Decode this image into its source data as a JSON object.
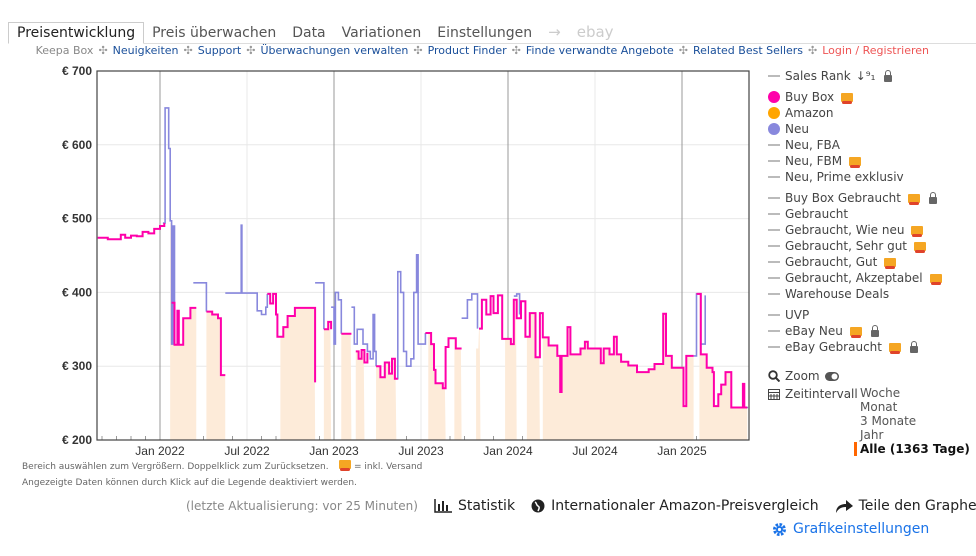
{
  "tabs": [
    "Preisentwicklung",
    "Preis überwachen",
    "Data",
    "Variationen",
    "Einstellungen",
    "→",
    "ebay"
  ],
  "subnav": [
    {
      "label": "Keepa Box",
      "style": "grey"
    },
    {
      "label": "Neuigkeiten",
      "style": "blue"
    },
    {
      "label": "Support",
      "style": "blue"
    },
    {
      "label": "Überwachungen verwalten",
      "style": "blue"
    },
    {
      "label": "Product Finder",
      "style": "blue"
    },
    {
      "label": "Finde verwandte Angebote",
      "style": "blue"
    },
    {
      "label": "Related Best Sellers",
      "style": "blue"
    },
    {
      "label": "Login / Registrieren",
      "style": "red"
    }
  ],
  "legend": {
    "groups": [
      [
        {
          "label": "Sales Rank",
          "marker": "dash",
          "sort": "↓⁹₁",
          "lock": true
        }
      ],
      [
        {
          "label": "Buy Box",
          "marker": "dot",
          "color": "#ff00aa",
          "truck": true
        },
        {
          "label": "Amazon",
          "marker": "dot",
          "color": "#ffa500"
        },
        {
          "label": "Neu",
          "marker": "dot",
          "color": "#8888dd"
        },
        {
          "label": "Neu, FBA",
          "marker": "dash"
        },
        {
          "label": "Neu, FBM",
          "marker": "dash",
          "truck": true
        },
        {
          "label": "Neu, Prime exklusiv",
          "marker": "dash"
        }
      ],
      [
        {
          "label": "Buy Box Gebraucht",
          "marker": "dash",
          "truck": true,
          "lock": true
        },
        {
          "label": "Gebraucht",
          "marker": "dash"
        },
        {
          "label": "Gebraucht, Wie neu",
          "marker": "dash",
          "truck": true
        },
        {
          "label": "Gebraucht, Sehr gut",
          "marker": "dash",
          "truck": true
        },
        {
          "label": "Gebraucht, Gut",
          "marker": "dash",
          "truck": true
        },
        {
          "label": "Gebraucht, Akzeptabel",
          "marker": "dash",
          "truck": true
        },
        {
          "label": "Warehouse Deals",
          "marker": "dash"
        }
      ],
      [
        {
          "label": "UVP",
          "marker": "dash"
        },
        {
          "label": "eBay Neu",
          "marker": "dash",
          "truck": true,
          "lock": true
        },
        {
          "label": "eBay Gebraucht",
          "marker": "dash",
          "truck": true,
          "lock": true
        }
      ]
    ]
  },
  "controls": {
    "zoom_label": "Zoom",
    "interval_label": "Zeitintervall",
    "ranges": [
      "Woche",
      "Monat",
      "3 Monate",
      "Jahr",
      "Alle (1363 Tage)"
    ],
    "selected_range": 4
  },
  "hint": {
    "line1": "Bereich auswählen zum Vergrößern. Doppelklick zum Zurücksetzen.",
    "versand": "= inkl. Versand",
    "line2": "Angezeigte Daten können durch Klick auf die Legende deaktiviert werden."
  },
  "bottom": {
    "updated": "(letzte Aktualisierung: vor 25 Minuten)",
    "stats": "Statistik",
    "intl": "Internationaler Amazon-Preisvergleich",
    "share": "Teile den Graphen",
    "settings": "Grafikeinstellungen"
  },
  "chart_data": {
    "type": "line",
    "title": "",
    "x_unit": "months since Jan 2022",
    "xlim": [
      -4.3,
      40.5
    ],
    "ylim": [
      200,
      700
    ],
    "yticks": [
      200,
      300,
      400,
      500,
      600,
      700
    ],
    "ytick_labels": [
      "€ 200",
      "€ 300",
      "€ 400",
      "€ 500",
      "€ 600",
      "€ 700"
    ],
    "xticks": [
      0,
      6,
      12,
      18,
      24,
      30,
      36
    ],
    "xtick_labels": [
      "Jan 2022",
      "Jul 2022",
      "Jan 2023",
      "Jul 2023",
      "Jan 2024",
      "Jul 2024",
      "Jan 2025"
    ],
    "grid": true,
    "series": [
      {
        "name": "Neu",
        "color": "#8888dd",
        "points": [
          [
            0.2,
            494
          ],
          [
            0.35,
            650
          ],
          [
            0.55,
            650
          ],
          [
            0.6,
            595
          ],
          [
            0.7,
            497
          ],
          [
            0.8,
            330
          ],
          [
            0.9,
            490
          ],
          [
            1.0,
            330
          ],
          null,
          [
            2.3,
            413
          ],
          [
            3.2,
            413
          ],
          [
            3.2,
            374
          ],
          null,
          [
            4.5,
            399
          ],
          [
            5.6,
            399
          ],
          [
            5.6,
            491
          ],
          [
            5.65,
            399
          ],
          [
            6.6,
            399
          ],
          [
            6.7,
            375
          ],
          [
            7.0,
            370
          ],
          [
            7.3,
            380
          ],
          [
            7.4,
            398
          ],
          null,
          [
            10.7,
            413
          ],
          [
            11.3,
            410
          ],
          [
            11.3,
            350
          ],
          null,
          [
            11.8,
            380
          ],
          [
            12.0,
            330
          ],
          [
            12.1,
            400
          ],
          [
            12.3,
            390
          ],
          [
            12.5,
            344
          ],
          null,
          [
            13.2,
            380
          ],
          [
            13.4,
            330
          ],
          [
            13.6,
            350
          ],
          [
            14.0,
            330
          ],
          [
            14.3,
            320
          ],
          [
            14.5,
            310
          ],
          [
            14.7,
            370
          ],
          [
            14.8,
            320
          ],
          [
            14.9,
            300
          ],
          null,
          [
            16.3,
            283
          ],
          [
            16.4,
            428
          ],
          [
            16.6,
            400
          ],
          [
            16.8,
            320
          ],
          [
            17.0,
            300
          ],
          [
            17.3,
            310
          ],
          [
            17.5,
            400
          ],
          [
            17.7,
            451
          ],
          [
            17.8,
            330
          ],
          [
            18.3,
            345
          ],
          null,
          [
            20.8,
            365
          ],
          [
            21.2,
            390
          ],
          [
            21.5,
            398
          ],
          [
            21.8,
            398
          ],
          [
            21.9,
            351
          ],
          null,
          [
            24.4,
            395
          ],
          [
            24.6,
            398
          ],
          [
            24.8,
            370
          ],
          null,
          [
            36.8,
            314
          ],
          [
            37.0,
            398
          ],
          [
            37.2,
            398
          ],
          [
            37.3,
            330
          ],
          [
            37.6,
            330
          ],
          [
            37.6,
            396
          ],
          null,
          [
            40.4,
            244
          ],
          [
            40.5,
            245
          ]
        ]
      },
      {
        "name": "Buy Box",
        "color": "#ff00aa",
        "points": [
          [
            -4.3,
            474
          ],
          [
            -3.6,
            472
          ],
          [
            -3.0,
            472
          ],
          [
            -2.7,
            478
          ],
          [
            -2.4,
            474
          ],
          [
            -2.0,
            477
          ],
          [
            -1.6,
            476
          ],
          [
            -1.2,
            482
          ],
          [
            -0.8,
            480
          ],
          [
            -0.4,
            486
          ],
          [
            0,
            490
          ],
          [
            0.3,
            494
          ],
          null,
          [
            0.8,
            386
          ],
          [
            1.0,
            329
          ],
          [
            1.2,
            375
          ],
          [
            1.3,
            329
          ],
          [
            1.6,
            365
          ],
          [
            2.1,
            379
          ],
          [
            2.5,
            379
          ],
          null,
          [
            3.2,
            374
          ],
          [
            3.6,
            370
          ],
          [
            4.0,
            365
          ],
          [
            4.2,
            288
          ],
          [
            4.5,
            288
          ],
          null,
          [
            7.4,
            398
          ],
          [
            7.6,
            385
          ],
          [
            7.8,
            398
          ],
          [
            8.0,
            370
          ],
          [
            8.1,
            340
          ],
          [
            8.5,
            353
          ],
          [
            8.8,
            368
          ],
          [
            9.3,
            379
          ],
          [
            10.7,
            278
          ],
          null,
          [
            11.3,
            350
          ],
          [
            11.6,
            360
          ],
          [
            11.8,
            350
          ],
          null,
          [
            12.5,
            344
          ],
          [
            13.2,
            344
          ],
          null,
          [
            13.5,
            320
          ],
          [
            13.7,
            310
          ],
          [
            13.9,
            322
          ],
          [
            14.1,
            305
          ],
          [
            14.3,
            318
          ],
          null,
          [
            14.9,
            300
          ],
          [
            15.2,
            285
          ],
          [
            15.5,
            305
          ],
          [
            15.8,
            290
          ],
          [
            16.0,
            310
          ],
          [
            16.2,
            283
          ],
          [
            16.4,
            283
          ],
          null,
          [
            18.3,
            345
          ],
          [
            18.7,
            330
          ],
          [
            18.9,
            295
          ],
          [
            19.0,
            277
          ],
          [
            19.5,
            270
          ],
          [
            19.7,
            326
          ],
          [
            19.9,
            338
          ],
          [
            20.4,
            324
          ],
          [
            20.8,
            324
          ],
          null,
          [
            22.0,
            351
          ],
          [
            22.2,
            390
          ],
          [
            22.5,
            370
          ],
          [
            22.8,
            395
          ],
          [
            23.0,
            372
          ],
          [
            23.3,
            396
          ],
          [
            23.6,
            337
          ],
          [
            24.0,
            337
          ],
          [
            24.2,
            330
          ],
          [
            24.4,
            390
          ],
          [
            24.6,
            365
          ],
          [
            24.9,
            388
          ],
          [
            25.2,
            340
          ],
          [
            25.5,
            372
          ],
          [
            25.9,
            312
          ],
          [
            26.2,
            372
          ],
          [
            26.4,
            339
          ],
          [
            26.8,
            328
          ],
          [
            27.4,
            314
          ],
          [
            27.6,
            265
          ],
          [
            27.7,
            314
          ],
          [
            28.1,
            353
          ],
          [
            28.3,
            316
          ],
          [
            29.0,
            324
          ],
          [
            29.3,
            333
          ],
          [
            29.5,
            324
          ],
          [
            30.4,
            304
          ],
          [
            30.6,
            324
          ],
          [
            31.0,
            316
          ],
          [
            31.3,
            340
          ],
          [
            31.5,
            316
          ],
          [
            31.8,
            306
          ],
          [
            32.3,
            301
          ],
          [
            32.9,
            292
          ],
          [
            33.7,
            296
          ],
          [
            34.1,
            303
          ],
          [
            34.7,
            371
          ],
          [
            34.9,
            314
          ],
          [
            35.3,
            298
          ],
          [
            36.0,
            298
          ],
          [
            36.1,
            246
          ],
          [
            36.3,
            314
          ],
          [
            36.8,
            314
          ],
          null,
          [
            37.0,
            398
          ],
          [
            37.3,
            316
          ],
          [
            37.7,
            298
          ],
          [
            38.1,
            292
          ],
          [
            38.2,
            246
          ],
          [
            38.5,
            262
          ],
          [
            38.7,
            275
          ],
          [
            39.0,
            292
          ],
          [
            39.4,
            244
          ],
          [
            40.1,
            244
          ],
          [
            40.2,
            276
          ],
          [
            40.3,
            244
          ],
          [
            40.5,
            244
          ]
        ]
      },
      {
        "name": "Amazon",
        "color": "#ffa500",
        "fill": "#fdebd9",
        "in_stock_ranges": [
          [
            0.7,
            2.5
          ],
          [
            3.2,
            4.5
          ],
          [
            8.3,
            10.7
          ],
          [
            11.3,
            11.8
          ],
          [
            12.5,
            13.2
          ],
          [
            13.5,
            14.1
          ],
          [
            14.9,
            16.3
          ],
          [
            18.5,
            19.7
          ],
          [
            20.3,
            20.8
          ],
          [
            21.8,
            22.1
          ],
          [
            23.8,
            24.6
          ],
          [
            25.3,
            26.2
          ],
          [
            26.4,
            36.8
          ],
          [
            37.2,
            40.5
          ]
        ]
      }
    ]
  }
}
